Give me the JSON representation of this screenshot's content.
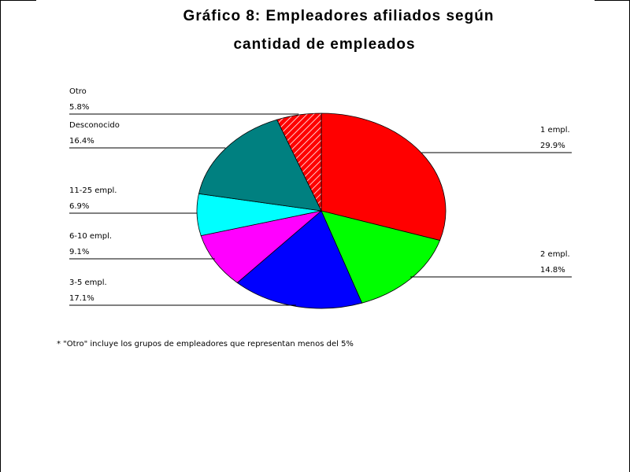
{
  "title": {
    "line1": "Gráfico 8: Empleadores afiliados según",
    "line2": "cantidad de empleados"
  },
  "footnote": "* \"Otro\" incluye los grupos de empleadores que representan menos del 5%",
  "chart_data": {
    "type": "pie",
    "title": "Gráfico 8: Empleadores afiliados según cantidad de empleados",
    "slices": [
      {
        "label": "1 empl.",
        "value": 29.9,
        "value_text": "29.9%",
        "color": "#ff0000"
      },
      {
        "label": "2 empl.",
        "value": 14.8,
        "value_text": "14.8%",
        "color": "#00ff00"
      },
      {
        "label": "3-5 empl.",
        "value": 17.1,
        "value_text": "17.1%",
        "color": "#0000ff"
      },
      {
        "label": "6-10 empl.",
        "value": 9.1,
        "value_text": "9.1%",
        "color": "#ff00ff"
      },
      {
        "label": "11-25 empl.",
        "value": 6.9,
        "value_text": "6.9%",
        "color": "#00ffff"
      },
      {
        "label": "Desconocido",
        "value": 16.4,
        "value_text": "16.4%",
        "color": "#008080"
      },
      {
        "label": "Otro",
        "value": 5.8,
        "value_text": "5.8%",
        "color": "#ff0000",
        "pattern": "hatched"
      }
    ]
  }
}
